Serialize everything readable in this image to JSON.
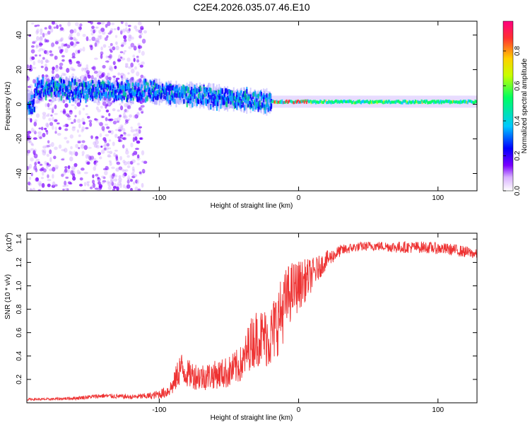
{
  "title": "C2E4.2026.035.07.46.E10",
  "chart_data": [
    {
      "type": "heatmap",
      "title": "C2E4.2026.035.07.46.E10",
      "xlabel": "Height of straight line (km)",
      "ylabel": "Frequency (Hz)",
      "xlim": [
        -195,
        128
      ],
      "ylim": [
        -50,
        48
      ],
      "xticks": [
        -100,
        0,
        100
      ],
      "yticks": [
        -40,
        -20,
        0,
        20,
        40
      ],
      "xtick_labels": [
        "-100",
        "0",
        "100"
      ],
      "ytick_labels": [
        "-40",
        "-20",
        "0",
        "20",
        "40"
      ],
      "colorbar": {
        "label": "Normalized spectral amplitude",
        "range": [
          0,
          0.97
        ],
        "ticks": [
          0,
          0.2,
          0.4,
          0.6,
          0.8
        ],
        "tick_labels": [
          "0.0",
          "0.2",
          "0.4",
          "0.6",
          "0.8"
        ],
        "colormap": [
          "#ffffff",
          "#7a00ff",
          "#0000ff",
          "#00c8ff",
          "#00ff60",
          "#c8ff00",
          "#ffd000",
          "#ff3030",
          "#ff0080"
        ]
      },
      "bands": [
        {
          "name": "scatter noise",
          "x_range": [
            -195,
            -110
          ],
          "freq_range": [
            -50,
            48
          ],
          "amplitude": 0.1
        },
        {
          "name": "signal band",
          "points": [
            [
              -190,
              9
            ],
            [
              -170,
              9
            ],
            [
              -150,
              8
            ],
            [
              -130,
              8
            ],
            [
              -110,
              8
            ],
            [
              -90,
              6
            ],
            [
              -70,
              5
            ],
            [
              -50,
              3
            ],
            [
              -30,
              2
            ],
            [
              -20,
              1
            ],
            [
              0,
              1
            ],
            [
              128,
              1
            ]
          ],
          "amplitude_range": [
            0.2,
            0.95
          ]
        }
      ]
    },
    {
      "type": "line",
      "xlabel": "Height of straight line (km)",
      "ylabel": "SNR (10 * v/v)",
      "y_multiplier": "(x10",
      "y_multiplier_exp": "4",
      "y_multiplier_close": ")",
      "xlim": [
        -195,
        128
      ],
      "ylim": [
        0,
        1.45
      ],
      "xticks": [
        -100,
        0,
        100
      ],
      "yticks": [
        0.2,
        0.4,
        0.6,
        0.8,
        1.0,
        1.2,
        1.4
      ],
      "xtick_labels": [
        "-100",
        "0",
        "100"
      ],
      "ytick_labels": [
        "0.2",
        "0.4",
        "0.6",
        "0.8",
        "1.0",
        "1.2",
        "1.4"
      ],
      "series": [
        {
          "name": "SNR",
          "color": "#ee3333",
          "x": [
            -195,
            -180,
            -160,
            -140,
            -120,
            -105,
            -95,
            -90,
            -85,
            -80,
            -70,
            -60,
            -50,
            -40,
            -35,
            -30,
            -25,
            -20,
            -15,
            -12,
            -8,
            -5,
            0,
            5,
            10,
            15,
            20,
            25,
            30,
            40,
            50,
            60,
            70,
            80,
            90,
            100,
            110,
            120,
            128
          ],
          "y": [
            0.03,
            0.03,
            0.04,
            0.06,
            0.05,
            0.06,
            0.09,
            0.15,
            0.3,
            0.25,
            0.22,
            0.24,
            0.26,
            0.34,
            0.5,
            0.56,
            0.56,
            0.56,
            0.7,
            0.78,
            0.9,
            0.96,
            1.0,
            1.05,
            1.1,
            1.16,
            1.22,
            1.26,
            1.3,
            1.33,
            1.34,
            1.34,
            1.33,
            1.33,
            1.33,
            1.32,
            1.31,
            1.29,
            1.27
          ],
          "noise": [
            0.01,
            0.01,
            0.015,
            0.02,
            0.02,
            0.03,
            0.05,
            0.08,
            0.15,
            0.12,
            0.12,
            0.12,
            0.14,
            0.16,
            0.22,
            0.25,
            0.25,
            0.28,
            0.3,
            0.3,
            0.28,
            0.25,
            0.22,
            0.18,
            0.14,
            0.1,
            0.08,
            0.06,
            0.05,
            0.04,
            0.04,
            0.04,
            0.05,
            0.05,
            0.05,
            0.05,
            0.05,
            0.05,
            0.04
          ]
        }
      ]
    }
  ]
}
